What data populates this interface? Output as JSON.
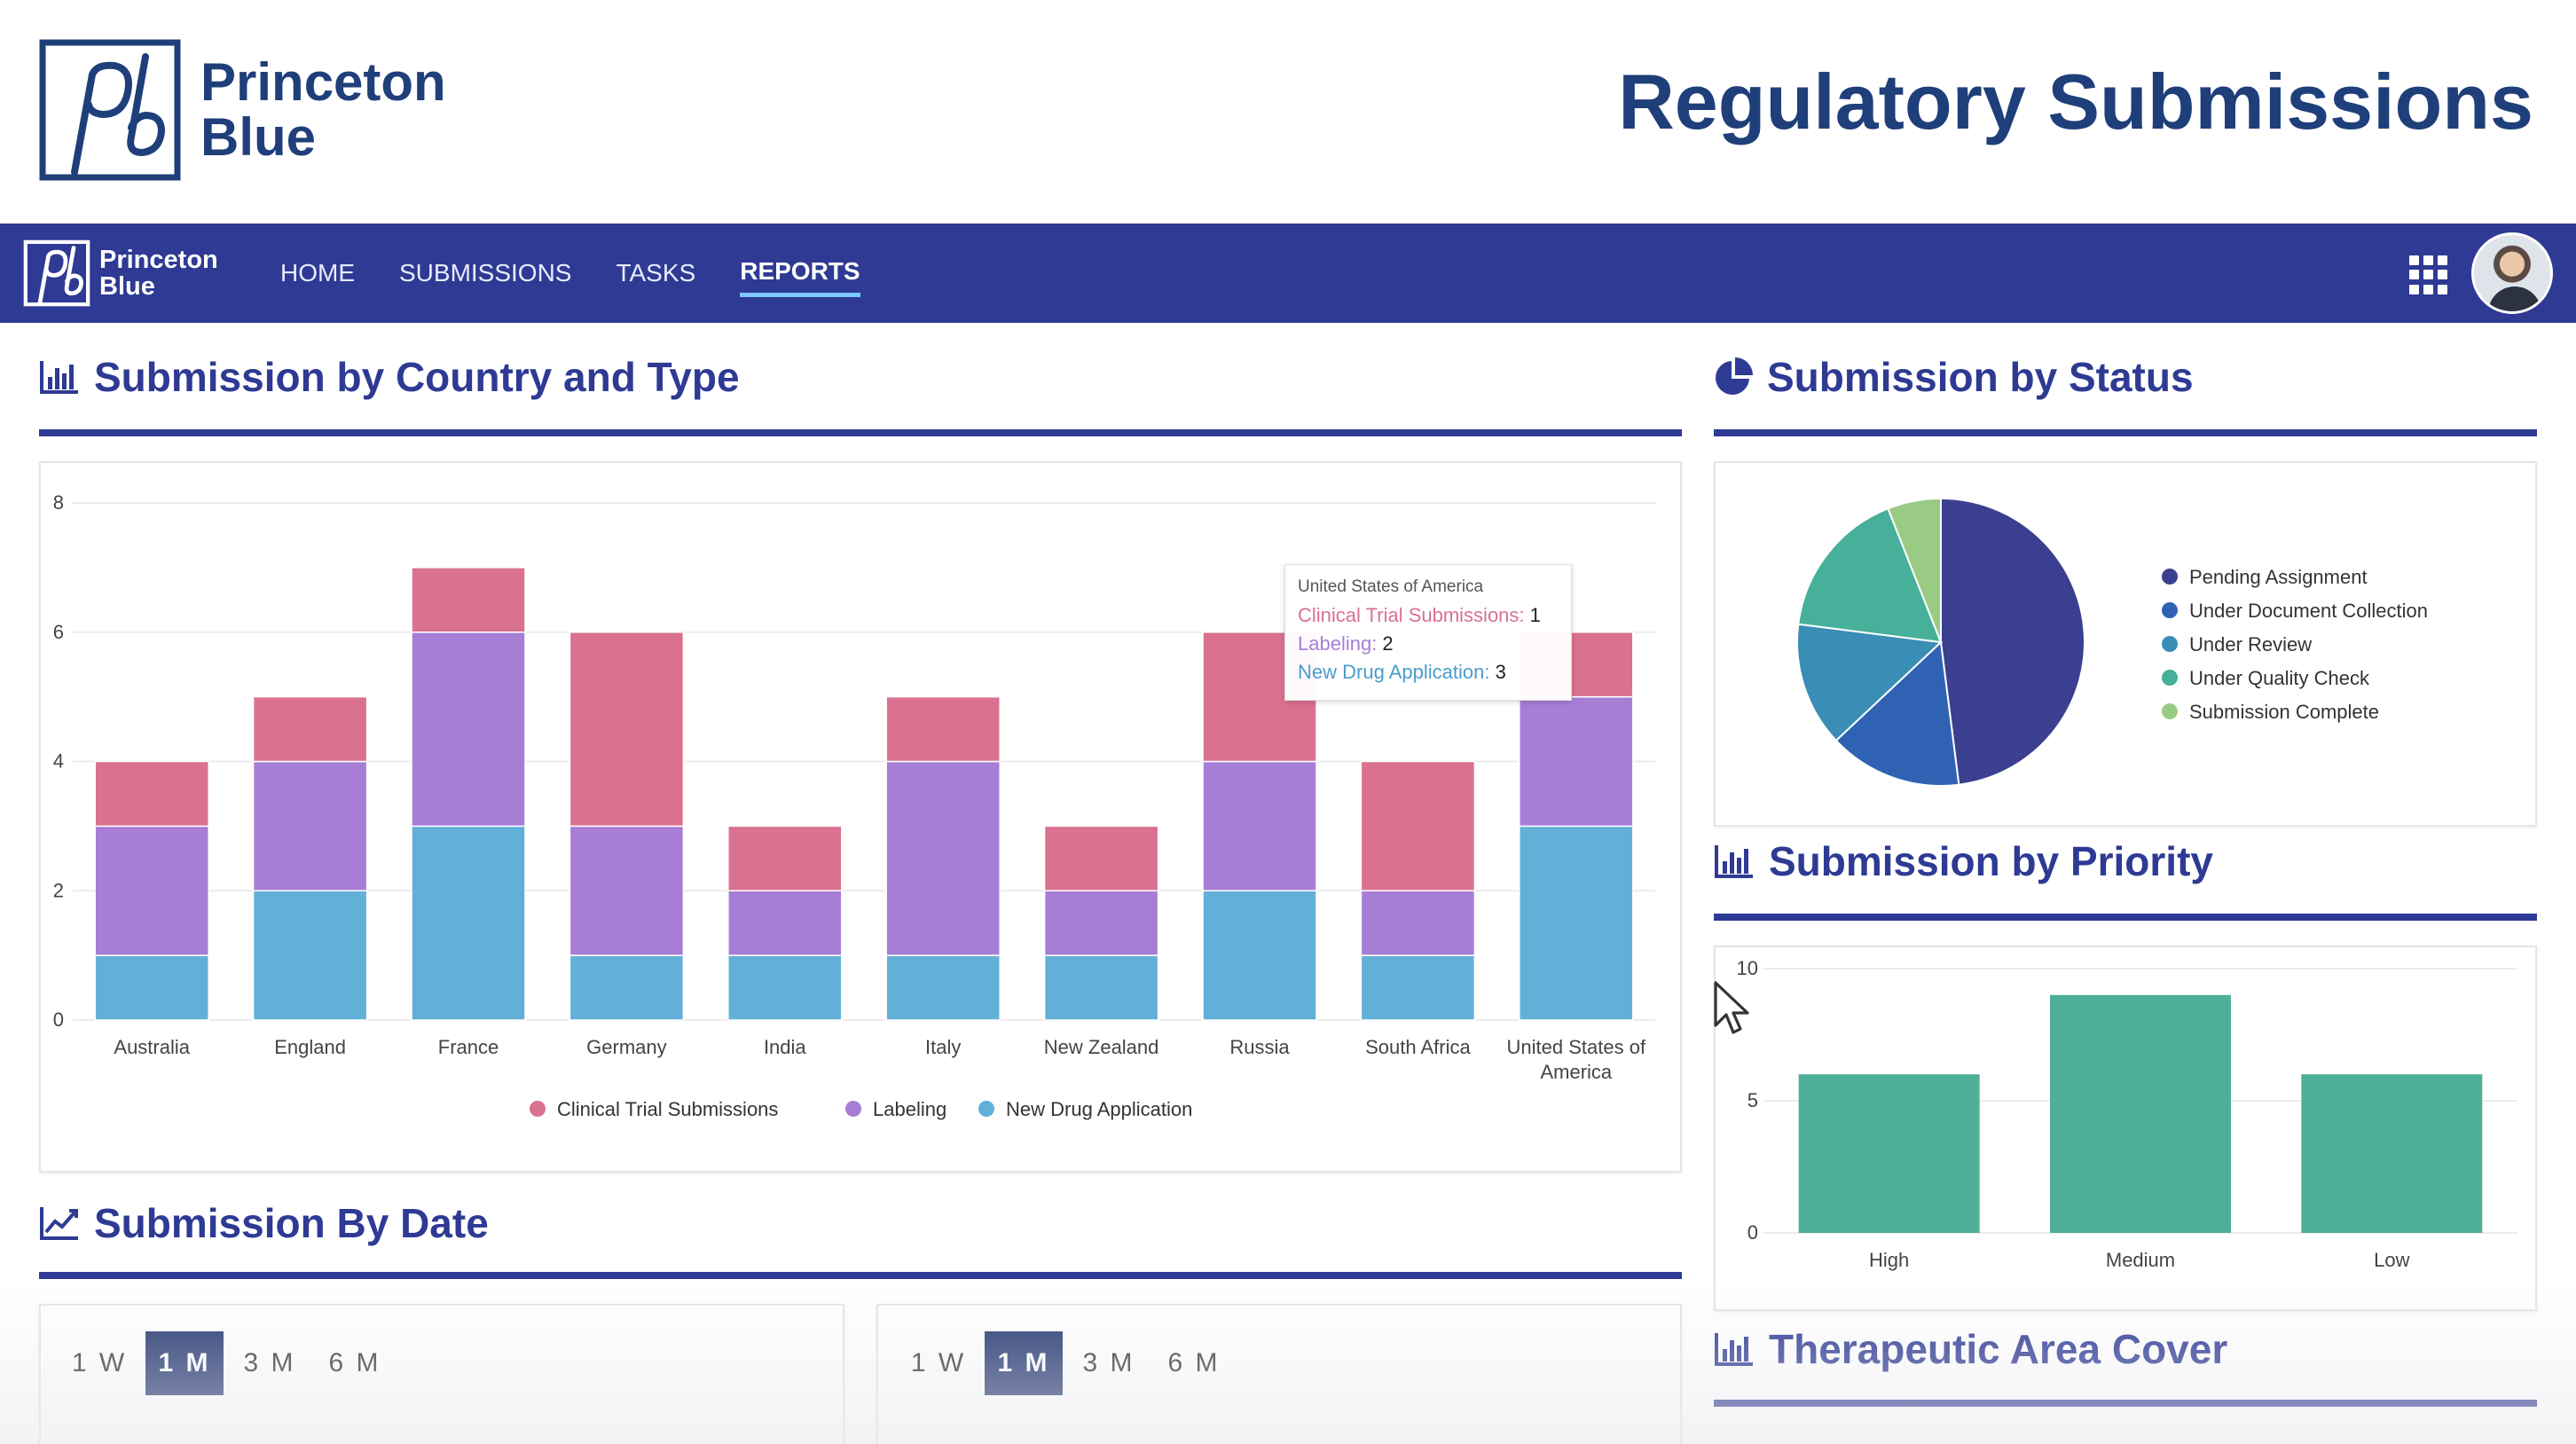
{
  "brand": {
    "line1": "Princeton",
    "line2": "Blue"
  },
  "page_title": "Regulatory Submissions",
  "nav": {
    "brand_line1": "Princeton",
    "brand_line2": "Blue",
    "items": [
      {
        "label": "HOME",
        "active": false
      },
      {
        "label": "SUBMISSIONS",
        "active": false
      },
      {
        "label": "TASKS",
        "active": false
      },
      {
        "label": "REPORTS",
        "active": true
      }
    ]
  },
  "sections": {
    "country_type": "Submission by Country and Type",
    "status": "Submission by Status",
    "priority": "Submission by Priority",
    "date": "Submission By Date",
    "therapeutic": "Therapeutic Area Cover"
  },
  "colors": {
    "primary": "#2e3a93",
    "clinical": "#d9718f",
    "labeling": "#a77ed6",
    "nda": "#62b0d8",
    "priority_bar": "#4fae97"
  },
  "tooltip": {
    "title": "United States of America",
    "rows": [
      {
        "label": "Clinical Trial Submissions",
        "value": "1",
        "color": "#d9718f"
      },
      {
        "label": "Labeling",
        "value": "2",
        "color": "#a77ed6"
      },
      {
        "label": "New Drug Application",
        "value": "3",
        "color": "#62b0d8"
      }
    ]
  },
  "chart_data": [
    {
      "type": "bar",
      "stacked": true,
      "categories": [
        "Australia",
        "England",
        "France",
        "Germany",
        "India",
        "Italy",
        "New Zealand",
        "Russia",
        "South Africa",
        "United States of America"
      ],
      "series": [
        {
          "name": "New Drug Application",
          "color": "#62b0d8",
          "values": [
            1,
            2,
            3,
            1,
            1,
            1,
            1,
            2,
            1,
            3
          ]
        },
        {
          "name": "Labeling",
          "color": "#a77ed6",
          "values": [
            2,
            2,
            3,
            2,
            1,
            3,
            1,
            2,
            1,
            2
          ]
        },
        {
          "name": "Clinical Trial Submissions",
          "color": "#d9718f",
          "values": [
            1,
            1,
            1,
            3,
            1,
            1,
            1,
            2,
            2,
            1
          ]
        }
      ],
      "legend": [
        "Clinical Trial Submissions",
        "Labeling",
        "New Drug Application"
      ],
      "ylim": [
        0,
        8
      ],
      "yticks": [
        "0",
        "2",
        "4",
        "6",
        "8"
      ],
      "legend_position": "bottom",
      "grid": true
    },
    {
      "type": "pie",
      "labels": [
        "Pending Assignment",
        "Under Document Collection",
        "Under Review",
        "Under Quality Check",
        "Submission Complete"
      ],
      "values": [
        48,
        15,
        14,
        17,
        6
      ],
      "colors": [
        "#3a3f8f",
        "#2f62b3",
        "#3a8db5",
        "#46b09a",
        "#9acb84"
      ],
      "legend_position": "right"
    },
    {
      "type": "bar",
      "categories": [
        "High",
        "Medium",
        "Low"
      ],
      "values": [
        6,
        9,
        6
      ],
      "color": "#4fae97",
      "ylim": [
        0,
        10
      ],
      "yticks": [
        "0",
        "5",
        "10"
      ],
      "grid": true
    }
  ],
  "range_buttons": {
    "left": [
      {
        "label": "1 W"
      },
      {
        "label": "1 M",
        "selected": true
      },
      {
        "label": "3 M"
      },
      {
        "label": "6 M"
      }
    ],
    "right": [
      {
        "label": "1 W"
      },
      {
        "label": "1 M",
        "selected": true
      },
      {
        "label": "3 M"
      },
      {
        "label": "6 M"
      }
    ]
  }
}
